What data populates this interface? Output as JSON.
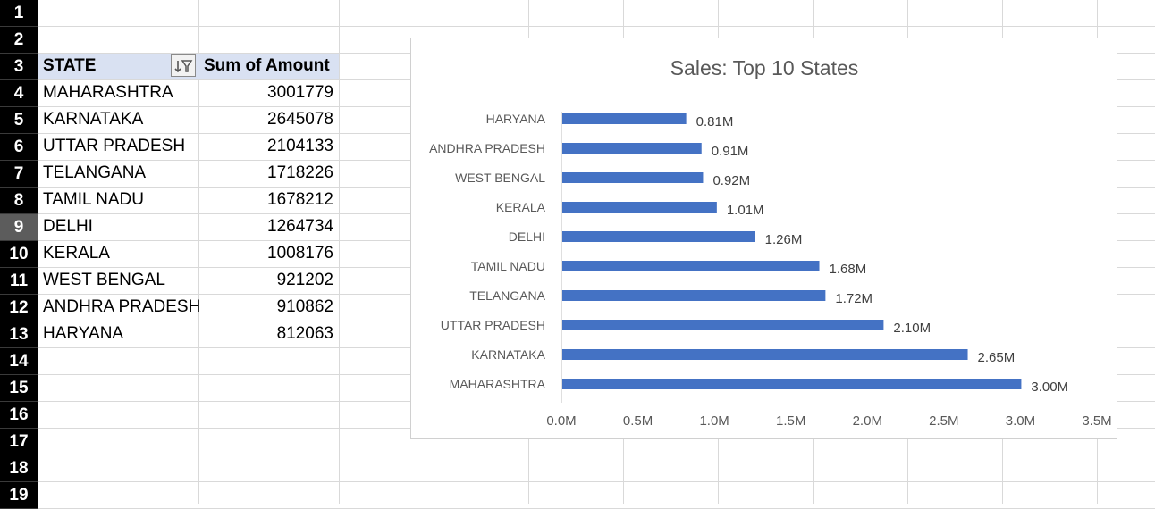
{
  "row_headers": [
    "1",
    "2",
    "3",
    "4",
    "5",
    "6",
    "7",
    "8",
    "9",
    "10",
    "11",
    "12",
    "13",
    "14",
    "15",
    "16",
    "17",
    "18",
    "19"
  ],
  "selected_row": "9",
  "pivot": {
    "col_state": "STATE",
    "col_amount": "Sum of Amount",
    "rows": [
      {
        "state": "MAHARASHTRA",
        "amount": "3001779"
      },
      {
        "state": "KARNATAKA",
        "amount": "2645078"
      },
      {
        "state": "UTTAR PRADESH",
        "amount": "2104133"
      },
      {
        "state": "TELANGANA",
        "amount": "1718226"
      },
      {
        "state": "TAMIL NADU",
        "amount": "1678212"
      },
      {
        "state": "DELHI",
        "amount": "1264734"
      },
      {
        "state": "KERALA",
        "amount": "1008176"
      },
      {
        "state": "WEST BENGAL",
        "amount": "921202"
      },
      {
        "state": "ANDHRA PRADESH",
        "amount": "910862"
      },
      {
        "state": "HARYANA",
        "amount": "812063"
      }
    ]
  },
  "icons": {
    "filter": "sort-filter-icon"
  },
  "colors": {
    "bar": "#4472c4",
    "header_band": "#d9e1f2",
    "row_header_bg": "#000000"
  },
  "chart_data": {
    "type": "bar",
    "orientation": "horizontal",
    "title": "Sales: Top 10 States",
    "categories": [
      "HARYANA",
      "ANDHRA PRADESH",
      "WEST BENGAL",
      "KERALA",
      "DELHI",
      "TAMIL NADU",
      "TELANGANA",
      "UTTAR PRADESH",
      "KARNATAKA",
      "MAHARASHTRA"
    ],
    "values": [
      0.81,
      0.91,
      0.92,
      1.01,
      1.26,
      1.68,
      1.72,
      2.1,
      2.65,
      3.0
    ],
    "data_labels": [
      "0.81M",
      "0.91M",
      "0.92M",
      "1.01M",
      "1.26M",
      "1.68M",
      "1.72M",
      "2.10M",
      "2.65M",
      "3.00M"
    ],
    "xlim": [
      0,
      3.5
    ],
    "x_ticks": [
      "0.0M",
      "0.5M",
      "1.0M",
      "1.5M",
      "2.0M",
      "2.5M",
      "3.0M",
      "3.5M"
    ],
    "grid": false,
    "legend": "none"
  }
}
